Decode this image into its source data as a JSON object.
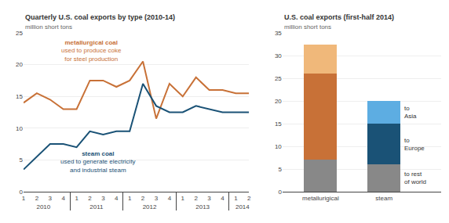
{
  "chart_data": [
    {
      "type": "line",
      "title": "Quarterly U.S. coal exports by type (2010-14)",
      "subtitle": "million short tons",
      "categories": [
        "1",
        "2",
        "3",
        "4",
        "1",
        "2",
        "3",
        "4",
        "1",
        "2",
        "3",
        "4",
        "1",
        "2",
        "3",
        "4",
        "1",
        "2"
      ],
      "category_groups": [
        "2010",
        "2010",
        "2010",
        "2010",
        "2011",
        "2011",
        "2011",
        "2011",
        "2012",
        "2012",
        "2012",
        "2012",
        "2013",
        "2013",
        "2013",
        "2013",
        "2014",
        "2014"
      ],
      "series": [
        {
          "name": "metallurgical coal",
          "color": "#c87137",
          "values": [
            14.0,
            15.5,
            14.5,
            13.0,
            13.0,
            17.5,
            17.5,
            16.5,
            17.5,
            20.5,
            11.5,
            17.0,
            15.0,
            18.0,
            16.0,
            16.0,
            15.5,
            15.5
          ]
        },
        {
          "name": "steam coal",
          "color": "#1a5276",
          "values": [
            3.5,
            5.5,
            7.5,
            7.5,
            7.0,
            9.5,
            9.0,
            9.5,
            9.5,
            17.0,
            13.5,
            12.5,
            12.5,
            13.5,
            13.0,
            12.5,
            12.5,
            12.5
          ]
        }
      ],
      "annotations": [
        "used to produce coke\nfor steel production",
        "used to generate electricity\nand industrial steam"
      ],
      "ylim": [
        0,
        25
      ],
      "yticks": [
        0,
        5,
        10,
        15,
        20,
        25
      ],
      "grid": true
    },
    {
      "type": "bar",
      "stacked": true,
      "title": "U.S. coal exports (first-half 2014)",
      "subtitle": "million short tons",
      "categories": [
        "metallurigical",
        "steam"
      ],
      "series": [
        {
          "name": "to rest\nof world",
          "colors": [
            "#888888",
            "#888888"
          ],
          "values": [
            7.0,
            6.0
          ]
        },
        {
          "name": "to\nEurope",
          "colors": [
            "#c87137",
            "#1a5276"
          ],
          "values": [
            19.0,
            9.0
          ]
        },
        {
          "name": "to\nAsia",
          "colors": [
            "#f0b87a",
            "#5dade2"
          ],
          "values": [
            6.5,
            5.0
          ]
        }
      ],
      "ylim": [
        0,
        35
      ],
      "yticks": [
        0,
        5,
        10,
        15,
        20,
        25,
        30,
        35
      ],
      "grid": true
    }
  ]
}
